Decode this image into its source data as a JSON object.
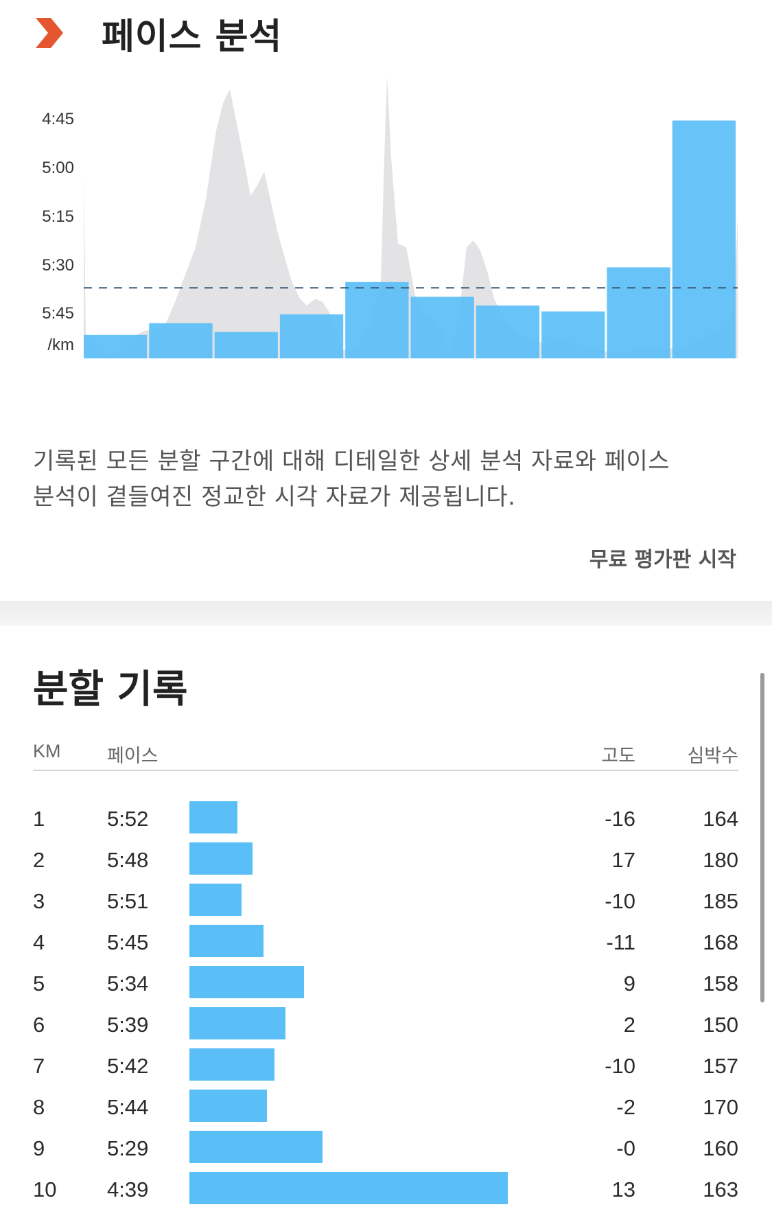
{
  "pace_analysis": {
    "title": "페이스 분석",
    "description_lines": [
      "기록된 모든 분할 구간에 대해 디테일한 상세 분석 자료와 페이스",
      "분석이 곁들여진 정교한 시각 자료가 제공됩니다."
    ],
    "trial_link": "무료 평가판 시작",
    "brand_color": "#e4572e",
    "bar_color": "#5bbff7",
    "avg_line_color": "#3a5a78"
  },
  "chart_data": {
    "type": "bar",
    "y_ticks": [
      "4:45",
      "5:00",
      "5:15",
      "5:30",
      "5:45"
    ],
    "y_unit": "/km",
    "categories": [
      "1",
      "2",
      "3",
      "4",
      "5",
      "6",
      "7",
      "8",
      "9",
      "10"
    ],
    "values": [
      352,
      348,
      351,
      345,
      334,
      339,
      342,
      344,
      329,
      279
    ],
    "y_axis_min_seconds": 360,
    "y_axis_max_seconds": 270,
    "average_pace_seconds": 336,
    "background_area_color": "#e3e3e5",
    "grid": false
  },
  "splits": {
    "title": "분할 기록",
    "columns": {
      "km": "KM",
      "pace": "페이스",
      "elevation": "고도",
      "heart_rate": "심박수"
    },
    "rows": [
      {
        "km": "1",
        "pace": "5:52",
        "pace_seconds": 352,
        "elevation": "-16",
        "heart_rate": "164"
      },
      {
        "km": "2",
        "pace": "5:48",
        "pace_seconds": 348,
        "elevation": "17",
        "heart_rate": "180"
      },
      {
        "km": "3",
        "pace": "5:51",
        "pace_seconds": 351,
        "elevation": "-10",
        "heart_rate": "185"
      },
      {
        "km": "4",
        "pace": "5:45",
        "pace_seconds": 345,
        "elevation": "-11",
        "heart_rate": "168"
      },
      {
        "km": "5",
        "pace": "5:34",
        "pace_seconds": 334,
        "elevation": "9",
        "heart_rate": "158"
      },
      {
        "km": "6",
        "pace": "5:39",
        "pace_seconds": 339,
        "elevation": "2",
        "heart_rate": "150"
      },
      {
        "km": "7",
        "pace": "5:42",
        "pace_seconds": 342,
        "elevation": "-10",
        "heart_rate": "157"
      },
      {
        "km": "8",
        "pace": "5:44",
        "pace_seconds": 344,
        "elevation": "-2",
        "heart_rate": "170"
      },
      {
        "km": "9",
        "pace": "5:29",
        "pace_seconds": 329,
        "elevation": "-0",
        "heart_rate": "160"
      },
      {
        "km": "10",
        "pace": "4:39",
        "pace_seconds": 279,
        "elevation": "13",
        "heart_rate": "163"
      }
    ]
  }
}
